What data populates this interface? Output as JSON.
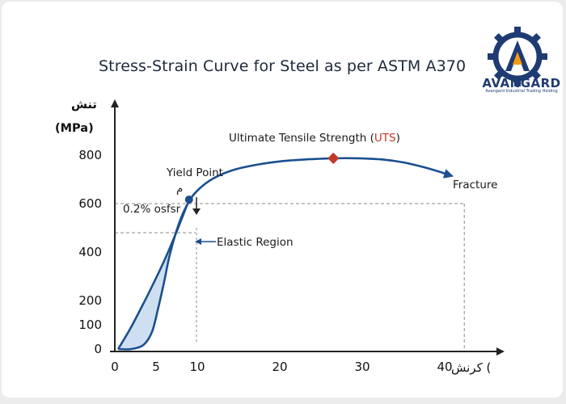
{
  "chart_data": {
    "type": "line",
    "title": "Stress-Strain Curve for Steel as per ASTM A370",
    "ylabel_line1": "تنش",
    "ylabel_line2": "(MPa)",
    "xlabel": "کرنش (",
    "xlim": [
      0,
      42
    ],
    "ylim": [
      0,
      900
    ],
    "x_ticks": [
      0,
      5,
      10,
      20,
      30,
      40
    ],
    "y_ticks": [
      0,
      100,
      200,
      400,
      600,
      800
    ],
    "grid": false,
    "series": [
      {
        "type": "line",
        "x": [
          0.4,
          1.8,
          3.2,
          4.6,
          6.0,
          7.2,
          8.2,
          9.0,
          10.2,
          12.0,
          14.5,
          17.5,
          20.5,
          23.5,
          26.5,
          29.5,
          32.5,
          35.0,
          37.5,
          39.5,
          40.8
        ],
        "y": [
          0,
          80,
          170,
          265,
          365,
          460,
          545,
          610,
          660,
          705,
          740,
          762,
          776,
          783,
          787,
          787,
          782,
          770,
          750,
          730,
          715
        ]
      },
      {
        "type": "line",
        "x": [
          0.4,
          2.0,
          3.5,
          4.5,
          5.2,
          5.9,
          6.6,
          7.4,
          8.2,
          9.0
        ],
        "y": [
          0,
          0,
          18,
          70,
          160,
          265,
          380,
          480,
          555,
          610
        ]
      }
    ],
    "reference_lines": {
      "y": 600,
      "x": 41,
      "offset_y": 480,
      "offset_x": 2.2
    },
    "annotations": {
      "uts": {
        "label": "Ultimate Tensile Strength (",
        "label_red": "UTS",
        "label_end": ")",
        "x": 26.5,
        "y": 787
      },
      "yield": {
        "label": "Yield Point",
        "x": 9.0,
        "y": 610
      },
      "yield_sym": "م",
      "offset": "0.2% osfsr",
      "elastic": "Elastic Region",
      "fracture": "Fracture"
    },
    "colors": {
      "curve": "#1b4f8f",
      "fill": "#c9dcef",
      "uts_marker": "#c0392b",
      "ref": "#888888"
    }
  },
  "logo": {
    "name": "AVANGARD",
    "subtitle": "Avangard Industrial Trading Holding",
    "colors": {
      "gear": "#1f3b73",
      "accent": "#f39c12"
    }
  }
}
